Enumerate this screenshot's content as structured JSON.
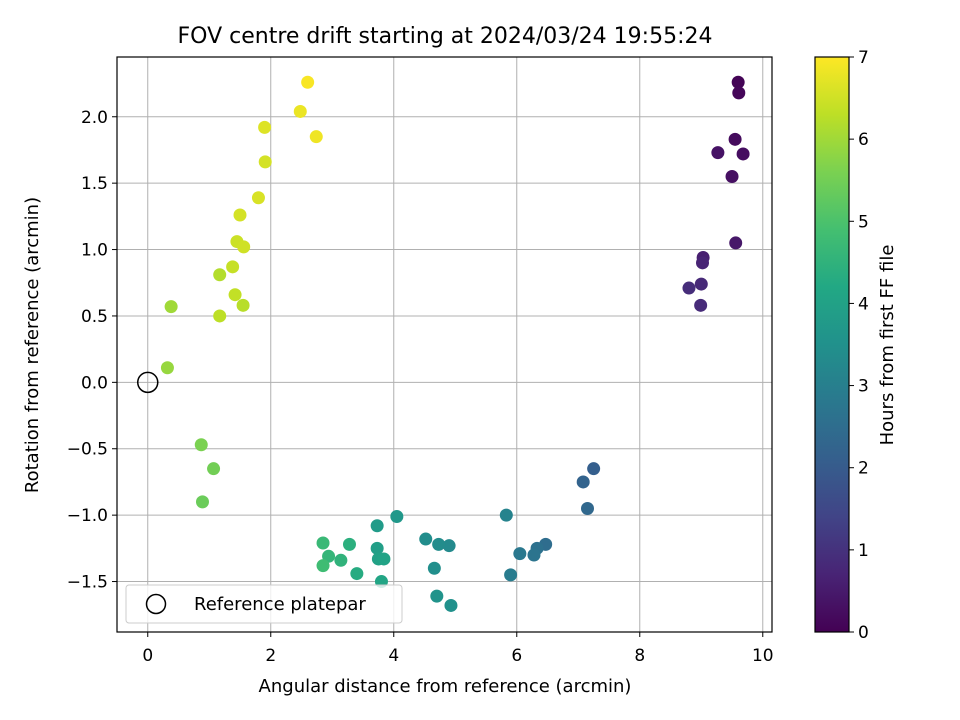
{
  "chart_data": {
    "type": "scatter",
    "title": "FOV centre drift starting at 2024/03/24 19:55:24",
    "xlabel": "Angular distance from reference (arcmin)",
    "ylabel": "Rotation from reference (arcmin)",
    "xlim": [
      -0.5,
      10.15
    ],
    "ylim": [
      -1.88,
      2.45
    ],
    "xticks": [
      0,
      2,
      4,
      6,
      8,
      10
    ],
    "xtick_labels": [
      "0",
      "2",
      "4",
      "6",
      "8",
      "10"
    ],
    "yticks": [
      -1.5,
      -1.0,
      -0.5,
      0.0,
      0.5,
      1.0,
      1.5,
      2.0
    ],
    "ytick_labels": [
      "−1.5",
      "−1.0",
      "−0.5",
      "0.0",
      "0.5",
      "1.0",
      "1.5",
      "2.0"
    ],
    "grid": true,
    "legend": {
      "placement": "lower left",
      "entries": [
        "Reference platepar"
      ]
    },
    "colorbar": {
      "label": "Hours from first FF file",
      "colormap": "viridis",
      "range": [
        0,
        7
      ],
      "ticks": [
        "0",
        "1",
        "2",
        "3",
        "4",
        "5",
        "6",
        "7"
      ]
    },
    "reference_point": {
      "x": 0.0,
      "y": 0.0,
      "marker": "open-circle",
      "color": "#000000"
    },
    "series": [
      {
        "points": [
          {
            "x": 9.6,
            "y": 2.26,
            "hours": 0.05
          },
          {
            "x": 9.61,
            "y": 2.18,
            "hours": 0.1
          },
          {
            "x": 9.55,
            "y": 1.83,
            "hours": 0.2
          },
          {
            "x": 9.68,
            "y": 1.72,
            "hours": 0.25
          },
          {
            "x": 9.27,
            "y": 1.73,
            "hours": 0.35
          },
          {
            "x": 9.5,
            "y": 1.55,
            "hours": 0.3
          },
          {
            "x": 9.56,
            "y": 1.05,
            "hours": 0.45
          },
          {
            "x": 9.03,
            "y": 0.94,
            "hours": 0.6
          },
          {
            "x": 9.02,
            "y": 0.9,
            "hours": 0.7
          },
          {
            "x": 9.0,
            "y": 0.74,
            "hours": 0.8
          },
          {
            "x": 8.8,
            "y": 0.71,
            "hours": 0.9
          },
          {
            "x": 8.99,
            "y": 0.58,
            "hours": 0.85
          },
          {
            "x": 7.25,
            "y": -0.65,
            "hours": 2.1
          },
          {
            "x": 7.08,
            "y": -0.75,
            "hours": 2.2
          },
          {
            "x": 7.15,
            "y": -0.95,
            "hours": 2.35
          },
          {
            "x": 6.47,
            "y": -1.22,
            "hours": 2.5
          },
          {
            "x": 6.33,
            "y": -1.25,
            "hours": 2.6
          },
          {
            "x": 6.28,
            "y": -1.3,
            "hours": 2.7
          },
          {
            "x": 6.05,
            "y": -1.29,
            "hours": 2.8
          },
          {
            "x": 5.9,
            "y": -1.45,
            "hours": 2.9
          },
          {
            "x": 5.83,
            "y": -1.0,
            "hours": 3.1
          },
          {
            "x": 4.9,
            "y": -1.23,
            "hours": 3.3
          },
          {
            "x": 4.73,
            "y": -1.22,
            "hours": 3.35
          },
          {
            "x": 4.52,
            "y": -1.18,
            "hours": 3.4
          },
          {
            "x": 4.66,
            "y": -1.4,
            "hours": 3.45
          },
          {
            "x": 4.7,
            "y": -1.61,
            "hours": 3.55
          },
          {
            "x": 4.93,
            "y": -1.68,
            "hours": 3.5
          },
          {
            "x": 4.05,
            "y": -1.01,
            "hours": 3.7
          },
          {
            "x": 3.73,
            "y": -1.08,
            "hours": 3.8
          },
          {
            "x": 3.73,
            "y": -1.25,
            "hours": 3.9
          },
          {
            "x": 3.75,
            "y": -1.33,
            "hours": 4.0
          },
          {
            "x": 3.84,
            "y": -1.33,
            "hours": 4.05
          },
          {
            "x": 3.8,
            "y": -1.5,
            "hours": 4.1
          },
          {
            "x": 3.4,
            "y": -1.44,
            "hours": 4.3
          },
          {
            "x": 3.28,
            "y": -1.22,
            "hours": 4.4
          },
          {
            "x": 3.14,
            "y": -1.34,
            "hours": 4.5
          },
          {
            "x": 2.94,
            "y": -1.31,
            "hours": 4.6
          },
          {
            "x": 2.85,
            "y": -1.21,
            "hours": 4.7
          },
          {
            "x": 2.85,
            "y": -1.38,
            "hours": 4.8
          },
          {
            "x": 0.87,
            "y": -0.47,
            "hours": 5.6
          },
          {
            "x": 1.07,
            "y": -0.65,
            "hours": 5.5
          },
          {
            "x": 0.89,
            "y": -0.9,
            "hours": 5.4
          },
          {
            "x": 0.32,
            "y": 0.11,
            "hours": 5.9
          },
          {
            "x": 0.38,
            "y": 0.57,
            "hours": 6.0
          },
          {
            "x": 1.17,
            "y": 0.5,
            "hours": 6.3
          },
          {
            "x": 1.55,
            "y": 0.58,
            "hours": 6.25
          },
          {
            "x": 1.42,
            "y": 0.66,
            "hours": 6.35
          },
          {
            "x": 1.17,
            "y": 0.81,
            "hours": 6.2
          },
          {
            "x": 1.38,
            "y": 0.87,
            "hours": 6.4
          },
          {
            "x": 1.45,
            "y": 1.06,
            "hours": 6.45
          },
          {
            "x": 1.56,
            "y": 1.02,
            "hours": 6.5
          },
          {
            "x": 1.5,
            "y": 1.26,
            "hours": 6.55
          },
          {
            "x": 1.8,
            "y": 1.39,
            "hours": 6.6
          },
          {
            "x": 1.91,
            "y": 1.66,
            "hours": 6.55
          },
          {
            "x": 1.9,
            "y": 1.92,
            "hours": 6.65
          },
          {
            "x": 2.48,
            "y": 2.04,
            "hours": 6.8
          },
          {
            "x": 2.74,
            "y": 1.85,
            "hours": 6.85
          },
          {
            "x": 2.6,
            "y": 2.26,
            "hours": 6.95
          }
        ]
      }
    ]
  },
  "colors": {
    "reference_marker": "#000000",
    "grid": "#b0b0b0",
    "legend_frame": "#cccccc"
  }
}
